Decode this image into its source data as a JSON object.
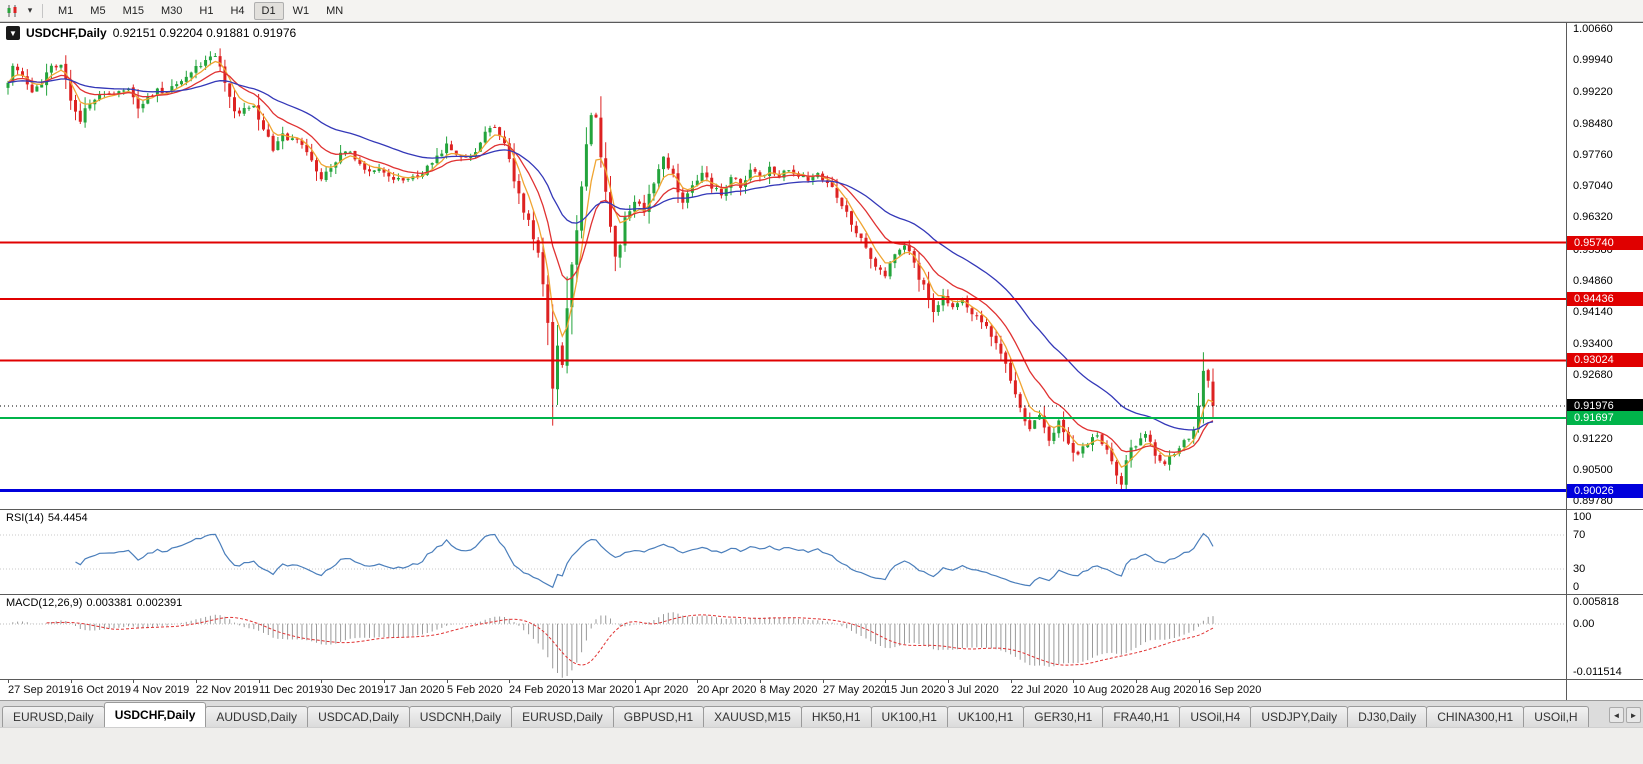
{
  "icons": {
    "collapse_triangle": "▼",
    "dropdown_caret": "▾",
    "tab_scroll_left": "◄",
    "tab_scroll_right": "►"
  },
  "toolbar": {
    "timeframes": [
      "M1",
      "M5",
      "M15",
      "M30",
      "H1",
      "H4",
      "D1",
      "W1",
      "MN"
    ],
    "active_timeframe": "D1"
  },
  "chart": {
    "symbol_period": "USDCHF,Daily",
    "ohlc_text": "0.92151 0.92204 0.91881 0.91976",
    "price_axis_labels": [
      "1.00660",
      "0.99940",
      "0.99220",
      "0.98480",
      "0.97760",
      "0.97040",
      "0.96320",
      "0.95580",
      "0.94860",
      "0.94140",
      "0.93400",
      "0.92680",
      "0.91220",
      "0.90500",
      "0.89780"
    ],
    "date_axis_labels": [
      "27 Sep 2019",
      "16 Oct 2019",
      "4 Nov 2019",
      "22 Nov 2019",
      "11 Dec 2019",
      "30 Dec 2019",
      "17 Jan 2020",
      "5 Feb 2020",
      "24 Feb 2020",
      "13 Mar 2020",
      "1 Apr 2020",
      "20 Apr 2020",
      "8 May 2020",
      "27 May 2020",
      "15 Jun 2020",
      "3 Jul 2020",
      "22 Jul 2020",
      "10 Aug 2020",
      "28 Aug 2020",
      "16 Sep 2020"
    ]
  },
  "rsi": {
    "name": "RSI(14)",
    "value": "54.4454",
    "axis_labels": [
      "100",
      "70",
      "30",
      "0"
    ],
    "levels": [
      70,
      30
    ]
  },
  "macd": {
    "name": "MACD(12,26,9)",
    "value_macd": "0.003381",
    "value_signal": "0.002391",
    "axis_labels": [
      "0.005818",
      "0.00",
      "-0.011514"
    ]
  },
  "tabbar": {
    "tabs": [
      "EURUSD,Daily",
      "USDCHF,Daily",
      "AUDUSD,Daily",
      "USDCAD,Daily",
      "USDCNH,Daily",
      "EURUSD,Daily",
      "GBPUSD,H1",
      "XAUUSD,M15",
      "HK50,H1",
      "UK100,H1",
      "UK100,H1",
      "GER30,H1",
      "FRA40,H1",
      "USOil,H4",
      "USDJPY,Daily",
      "DJ30,Daily",
      "CHINA300,H1",
      "USOil,H"
    ],
    "active_index": 1
  },
  "colors": {
    "bull": "#23A43C",
    "bear": "#DD2222",
    "ma_fast_orange": "#F0A532",
    "ma_mid_red": "#E03232",
    "ma_slow_blue": "#3438B8",
    "rsi_line": "#4A7EBB",
    "macd_hist": "#9A9A9A",
    "macd_signal": "#E03232",
    "resistance": "#E00000",
    "support_green": "#00B44A",
    "support_blue": "#0000DC",
    "current_price": "#000000"
  },
  "chart_data": {
    "type": "candlestick",
    "symbol": "USDCHF",
    "timeframe": "Daily",
    "x_range": [
      "25 Sep 2019",
      "24 Sep 2020"
    ],
    "y_range": [
      0.896,
      1.008
    ],
    "candle_count": 251,
    "seed": 13,
    "last_close": 0.91976,
    "price_path": [
      [
        0,
        0.9945
      ],
      [
        1,
        0.9985
      ],
      [
        3,
        0.9955
      ],
      [
        5,
        0.9915
      ],
      [
        7,
        0.9945
      ],
      [
        9,
        0.9975
      ],
      [
        11,
        0.999
      ],
      [
        13,
        0.9905
      ],
      [
        15,
        0.986
      ],
      [
        17,
        0.9895
      ],
      [
        19,
        0.9915
      ],
      [
        22,
        0.9925
      ],
      [
        25,
        0.993
      ],
      [
        27,
        0.989
      ],
      [
        29,
        0.991
      ],
      [
        31,
        0.9925
      ],
      [
        33,
        0.992
      ],
      [
        35,
        0.994
      ],
      [
        37,
        0.9955
      ],
      [
        39,
        0.9975
      ],
      [
        41,
        0.9995
      ],
      [
        43,
        1.0005
      ],
      [
        45,
        0.9945
      ],
      [
        47,
        0.987
      ],
      [
        49,
        0.988
      ],
      [
        51,
        0.989
      ],
      [
        53,
        0.983
      ],
      [
        55,
        0.979
      ],
      [
        57,
        0.982
      ],
      [
        59,
        0.9815
      ],
      [
        61,
        0.98
      ],
      [
        63,
        0.976
      ],
      [
        65,
        0.9715
      ],
      [
        67,
        0.9745
      ],
      [
        69,
        0.9775
      ],
      [
        71,
        0.978
      ],
      [
        73,
        0.976
      ],
      [
        75,
        0.9735
      ],
      [
        77,
        0.9745
      ],
      [
        79,
        0.973
      ],
      [
        81,
        0.9715
      ],
      [
        83,
        0.972
      ],
      [
        85,
        0.973
      ],
      [
        87,
        0.9745
      ],
      [
        89,
        0.9775
      ],
      [
        91,
        0.9795
      ],
      [
        93,
        0.9775
      ],
      [
        95,
        0.977
      ],
      [
        97,
        0.979
      ],
      [
        99,
        0.983
      ],
      [
        100,
        0.9845
      ],
      [
        101,
        0.984
      ],
      [
        103,
        0.98
      ],
      [
        104,
        0.976
      ],
      [
        105,
        0.972
      ],
      [
        106,
        0.9685
      ],
      [
        107,
        0.965
      ],
      [
        108,
        0.962
      ],
      [
        109,
        0.9585
      ],
      [
        110,
        0.955
      ],
      [
        111,
        0.947
      ],
      [
        112,
        0.939
      ],
      [
        113,
        0.924
      ],
      [
        114,
        0.934
      ],
      [
        115,
        0.93
      ],
      [
        116,
        0.943
      ],
      [
        117,
        0.953
      ],
      [
        118,
        0.961
      ],
      [
        119,
        0.97
      ],
      [
        120,
        0.98
      ],
      [
        121,
        0.9865
      ],
      [
        122,
        0.9855
      ],
      [
        123,
        0.977
      ],
      [
        124,
        0.969
      ],
      [
        125,
        0.961
      ],
      [
        126,
        0.9545
      ],
      [
        127,
        0.9575
      ],
      [
        128,
        0.963
      ],
      [
        130,
        0.9675
      ],
      [
        132,
        0.9645
      ],
      [
        134,
        0.9715
      ],
      [
        136,
        0.9765
      ],
      [
        138,
        0.9725
      ],
      [
        140,
        0.9665
      ],
      [
        142,
        0.9705
      ],
      [
        144,
        0.974
      ],
      [
        146,
        0.9705
      ],
      [
        148,
        0.9685
      ],
      [
        150,
        0.973
      ],
      [
        152,
        0.9705
      ],
      [
        154,
        0.974
      ],
      [
        156,
        0.9725
      ],
      [
        158,
        0.9745
      ],
      [
        160,
        0.973
      ],
      [
        162,
        0.9745
      ],
      [
        164,
        0.973
      ],
      [
        166,
        0.972
      ],
      [
        168,
        0.9735
      ],
      [
        170,
        0.9715
      ],
      [
        172,
        0.968
      ],
      [
        174,
        0.964
      ],
      [
        176,
        0.96
      ],
      [
        178,
        0.956
      ],
      [
        180,
        0.952
      ],
      [
        182,
        0.9495
      ],
      [
        183,
        0.953
      ],
      [
        184,
        0.9555
      ],
      [
        186,
        0.9575
      ],
      [
        188,
        0.952
      ],
      [
        190,
        0.947
      ],
      [
        192,
        0.9415
      ],
      [
        194,
        0.9445
      ],
      [
        196,
        0.9425
      ],
      [
        198,
        0.944
      ],
      [
        200,
        0.9405
      ],
      [
        202,
        0.939
      ],
      [
        204,
        0.936
      ],
      [
        206,
        0.932
      ],
      [
        208,
        0.926
      ],
      [
        210,
        0.919
      ],
      [
        212,
        0.915
      ],
      [
        214,
        0.9175
      ],
      [
        216,
        0.912
      ],
      [
        218,
        0.9165
      ],
      [
        220,
        0.911
      ],
      [
        222,
        0.9085
      ],
      [
        224,
        0.9115
      ],
      [
        226,
        0.9135
      ],
      [
        228,
        0.91
      ],
      [
        230,
        0.9045
      ],
      [
        231,
        0.9015
      ],
      [
        232,
        0.908
      ],
      [
        234,
        0.911
      ],
      [
        236,
        0.9125
      ],
      [
        238,
        0.909
      ],
      [
        240,
        0.9065
      ],
      [
        242,
        0.909
      ],
      [
        244,
        0.9115
      ],
      [
        246,
        0.9135
      ],
      [
        247,
        0.92
      ],
      [
        248,
        0.928
      ],
      [
        249,
        0.9255
      ],
      [
        250,
        0.9198
      ]
    ],
    "levels": [
      {
        "price": 0.9574,
        "label": "0.95740",
        "color": "#E00000",
        "width": 2,
        "dash": null,
        "type": "resistance"
      },
      {
        "price": 0.94436,
        "label": "0.94436",
        "color": "#E00000",
        "width": 2,
        "dash": null,
        "type": "resistance"
      },
      {
        "price": 0.93024,
        "label": "0.93024",
        "color": "#E00000",
        "width": 2,
        "dash": null,
        "type": "resistance"
      },
      {
        "price": 0.91976,
        "label": "0.91976",
        "color": "#000000",
        "width": 1,
        "dash": "1,3",
        "type": "current-price"
      },
      {
        "price": 0.91697,
        "label": "0.91697",
        "color": "#00B44A",
        "width": 2,
        "dash": null,
        "type": "support"
      },
      {
        "price": 0.90026,
        "label": "0.90026",
        "color": "#0000DC",
        "width": 3,
        "dash": null,
        "type": "support"
      }
    ],
    "indicators": {
      "moving_averages": [
        {
          "period": 5,
          "method": "ema",
          "color": "#F0A532"
        },
        {
          "period": 13,
          "method": "ema",
          "color": "#E03232"
        },
        {
          "period": 34,
          "method": "ema",
          "color": "#3438B8"
        }
      ],
      "rsi": {
        "period": 14,
        "last_value": 54.4454,
        "range": [
          0,
          100
        ],
        "levels": [
          30,
          70
        ]
      },
      "macd": {
        "fast": 12,
        "slow": 26,
        "signal": 9,
        "last_macd": 0.003381,
        "last_signal": 0.002391,
        "axis_max": 0.005818,
        "axis_min": -0.011514
      }
    }
  }
}
